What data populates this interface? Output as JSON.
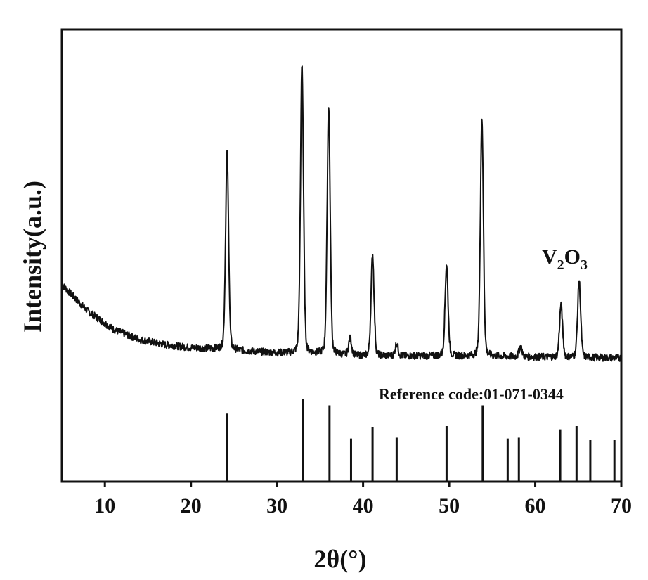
{
  "chart_data": {
    "type": "line",
    "title": "",
    "xlabel": "2θ(°)",
    "ylabel": "Intensity(a.u.)",
    "xlim": [
      5,
      70
    ],
    "xticks": [
      10,
      20,
      30,
      40,
      50,
      60,
      70
    ],
    "grid": false,
    "line_color": "#111111",
    "series": [
      {
        "name": "V2O3",
        "label_parts": {
          "v": "V",
          "sub1": "2",
          "o": "O",
          "sub2": "3"
        },
        "background": [
          [
            5,
            0.37
          ],
          [
            8,
            0.24
          ],
          [
            11,
            0.15
          ],
          [
            14,
            0.1
          ],
          [
            17,
            0.075
          ],
          [
            20,
            0.06
          ],
          [
            23,
            0.055
          ],
          [
            26,
            0.045
          ],
          [
            30,
            0.035
          ],
          [
            35,
            0.03
          ],
          [
            40,
            0.02
          ],
          [
            50,
            0.02
          ],
          [
            60,
            0.015
          ],
          [
            70,
            0.01
          ]
        ],
        "peaks": [
          {
            "x": 24.2,
            "y": 0.96
          },
          {
            "x": 32.9,
            "y": 1.42
          },
          {
            "x": 36.0,
            "y": 1.22
          },
          {
            "x": 38.5,
            "y": 0.08
          },
          {
            "x": 41.1,
            "y": 0.5
          },
          {
            "x": 43.9,
            "y": 0.06
          },
          {
            "x": 49.7,
            "y": 0.45
          },
          {
            "x": 53.8,
            "y": 1.17
          },
          {
            "x": 58.3,
            "y": 0.05
          },
          {
            "x": 63.0,
            "y": 0.26
          },
          {
            "x": 65.1,
            "y": 0.38
          }
        ]
      }
    ],
    "reference": {
      "label": "Reference code:01-071-0344",
      "lines": [
        {
          "x": 24.2,
          "h": 0.82
        },
        {
          "x": 33.0,
          "h": 1.0
        },
        {
          "x": 36.1,
          "h": 0.92
        },
        {
          "x": 38.6,
          "h": 0.52
        },
        {
          "x": 41.1,
          "h": 0.66
        },
        {
          "x": 43.9,
          "h": 0.53
        },
        {
          "x": 49.7,
          "h": 0.67
        },
        {
          "x": 53.9,
          "h": 0.92
        },
        {
          "x": 56.8,
          "h": 0.52
        },
        {
          "x": 58.1,
          "h": 0.53
        },
        {
          "x": 62.9,
          "h": 0.63
        },
        {
          "x": 64.8,
          "h": 0.67
        },
        {
          "x": 66.4,
          "h": 0.5
        },
        {
          "x": 69.2,
          "h": 0.5
        }
      ]
    }
  }
}
